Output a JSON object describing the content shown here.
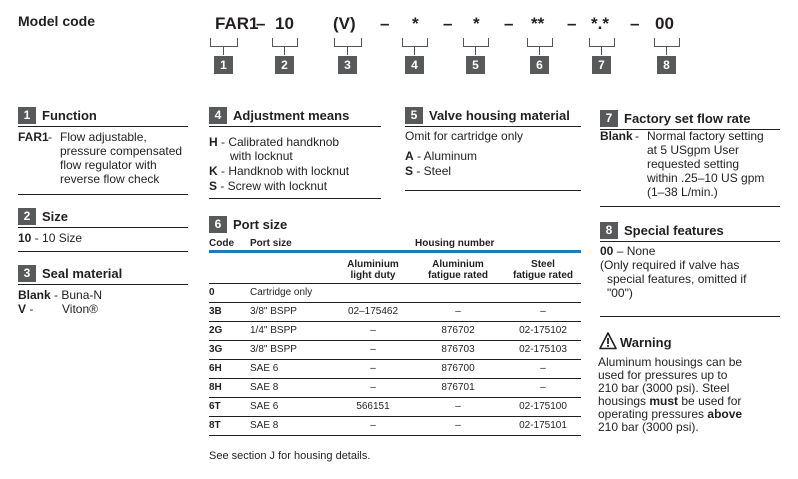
{
  "model_code": {
    "title": "Model code",
    "parts": [
      "FAR1",
      "–",
      "10",
      "(V)",
      "–",
      "*",
      "–",
      "*",
      "–",
      "**",
      "–",
      "*.*",
      "–",
      "00"
    ],
    "numbers": [
      "1",
      "2",
      "3",
      "4",
      "5",
      "6",
      "7",
      "8"
    ]
  },
  "function": {
    "num": "1",
    "title": "Function",
    "code": "FAR1",
    "sep": " - ",
    "lines": [
      "Flow adjustable,",
      "pressure compensated",
      "flow regulator with",
      "reverse flow check"
    ]
  },
  "size": {
    "num": "2",
    "title": "Size",
    "code": "10",
    "text": " - 10 Size"
  },
  "seal": {
    "num": "3",
    "title": "Seal material",
    "items": [
      {
        "code": "Blank",
        "text": " - Buna-N"
      },
      {
        "code": "V",
        "text": " -",
        "text2": "Viton®"
      }
    ]
  },
  "adjustment": {
    "num": "4",
    "title": "Adjustment means",
    "items": [
      {
        "code": "H",
        "text": " - Calibrated handknob",
        "text2": "with locknut"
      },
      {
        "code": "K",
        "text": " - Handknob with locknut"
      },
      {
        "code": "S",
        "text": " - Screw with locknut"
      }
    ]
  },
  "housing": {
    "num": "5",
    "title": "Valve housing material",
    "note": "Omit for cartridge only",
    "items": [
      {
        "code": "A",
        "text": " - Aluminum"
      },
      {
        "code": "S",
        "text": " - Steel"
      }
    ]
  },
  "port": {
    "num": "6",
    "title": "Port size",
    "headers": {
      "code": "Code",
      "port": "Port size",
      "housing": "Housing number"
    },
    "subheaders": {
      "al_light_1": "Aluminium",
      "al_light_2": "light duty",
      "al_fat_1": "Aluminium",
      "al_fat_2": "fatigue rated",
      "steel_1": "Steel",
      "steel_2": "fatigue rated"
    },
    "rows": [
      {
        "code": "0",
        "port": "Cartridge only",
        "al_light": "",
        "al_fat": "",
        "steel": ""
      },
      {
        "code": "3B",
        "port": "3/8\" BSPP",
        "al_light": "02–175462",
        "al_fat": "–",
        "steel": "–"
      },
      {
        "code": "2G",
        "port": "1/4\" BSPP",
        "al_light": "–",
        "al_fat": "876702",
        "steel": "02-175102"
      },
      {
        "code": "3G",
        "port": "3/8\" BSPP",
        "al_light": "–",
        "al_fat": "876703",
        "steel": "02-175103"
      },
      {
        "code": "6H",
        "port": "SAE 6",
        "al_light": "–",
        "al_fat": "876700",
        "steel": "–"
      },
      {
        "code": "8H",
        "port": "SAE 8",
        "al_light": "–",
        "al_fat": "876701",
        "steel": "–"
      },
      {
        "code": "6T",
        "port": "SAE 6",
        "al_light": "566151",
        "al_fat": "–",
        "steel": "02-175100"
      },
      {
        "code": "8T",
        "port": "SAE 8",
        "al_light": "–",
        "al_fat": "–",
        "steel": "02-175101"
      }
    ],
    "footnote": "See section J for housing details."
  },
  "flow": {
    "num": "7",
    "title": "Factory set flow rate",
    "code": "Blank",
    "sep": " - ",
    "lines": [
      "Normal factory setting",
      "at 5 USgpm User",
      "requested setting",
      "within .25–10 US gpm",
      "(1–38 L/min.)"
    ]
  },
  "special": {
    "num": "8",
    "title": "Special features",
    "code": "00",
    "text": " –  None",
    "lines": [
      "(Only required if valve has",
      "special features, omitted if",
      "\"00\")"
    ]
  },
  "warning": {
    "title": "Warning",
    "lines": [
      {
        "parts": [
          {
            "t": "Aluminum housings can be"
          }
        ]
      },
      {
        "parts": [
          {
            "t": "used for pressures up to"
          }
        ]
      },
      {
        "parts": [
          {
            "t": "210 bar (3000 psi). Steel"
          }
        ]
      },
      {
        "parts": [
          {
            "t": "housings "
          },
          {
            "t": "must",
            "b": true
          },
          {
            "t": " be used for"
          }
        ]
      },
      {
        "parts": [
          {
            "t": "operating pressures "
          },
          {
            "t": "above",
            "b": true
          }
        ]
      },
      {
        "parts": [
          {
            "t": "210 bar (3000 psi)."
          }
        ]
      }
    ]
  }
}
